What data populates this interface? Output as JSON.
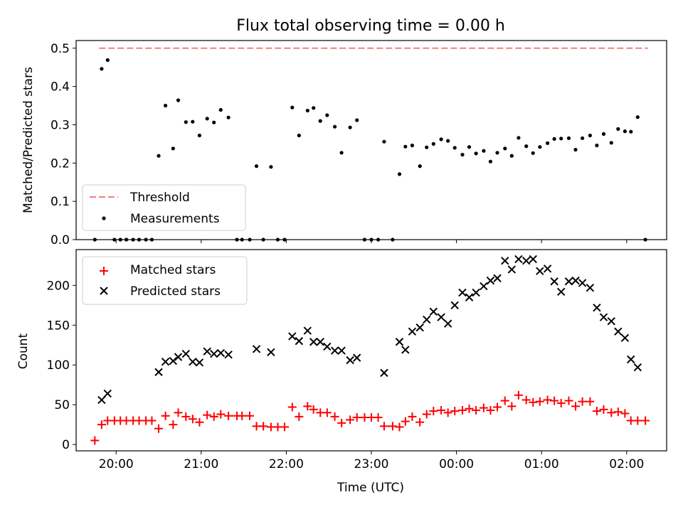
{
  "chart_data": [
    {
      "type": "scatter",
      "title": "Flux total observing time = 0.00 h",
      "xlabel": "",
      "ylabel": "Matched/Predicted stars",
      "x_axis": "time of day (hours, UTC)",
      "xlim": [
        19.53,
        26.47
      ],
      "ylim": [
        0,
        0.52
      ],
      "y_ticks": [
        "0.0",
        "0.1",
        "0.2",
        "0.3",
        "0.4",
        "0.5"
      ],
      "legend_position": "lower-left",
      "series": [
        {
          "name": "Threshold",
          "kind": "dashed-line",
          "color": "#f08080",
          "x": [
            19.8,
            26.25
          ],
          "y": [
            0.5,
            0.5
          ]
        },
        {
          "name": "Measurements",
          "kind": "dot",
          "color": "#000000",
          "points": [
            [
              19.75,
              0.0
            ],
            [
              19.83,
              0.446
            ],
            [
              19.9,
              0.469
            ],
            [
              19.98,
              0.0
            ],
            [
              20.05,
              0.0
            ],
            [
              20.12,
              0.0
            ],
            [
              20.2,
              0.0
            ],
            [
              20.27,
              0.0
            ],
            [
              20.35,
              0.0
            ],
            [
              20.42,
              0.0
            ],
            [
              20.5,
              0.219
            ],
            [
              20.58,
              0.35
            ],
            [
              20.67,
              0.238
            ],
            [
              20.73,
              0.364
            ],
            [
              20.82,
              0.307
            ],
            [
              20.9,
              0.308
            ],
            [
              20.98,
              0.272
            ],
            [
              21.07,
              0.316
            ],
            [
              21.15,
              0.306
            ],
            [
              21.23,
              0.339
            ],
            [
              21.32,
              0.319
            ],
            [
              21.42,
              0.0
            ],
            [
              21.48,
              0.0
            ],
            [
              21.57,
              0.0
            ],
            [
              21.65,
              0.192
            ],
            [
              21.73,
              0.0
            ],
            [
              21.82,
              0.19
            ],
            [
              21.9,
              0.0
            ],
            [
              21.98,
              0.0
            ],
            [
              22.07,
              0.345
            ],
            [
              22.15,
              0.272
            ],
            [
              22.25,
              0.337
            ],
            [
              22.32,
              0.344
            ],
            [
              22.4,
              0.31
            ],
            [
              22.48,
              0.325
            ],
            [
              22.57,
              0.295
            ],
            [
              22.65,
              0.227
            ],
            [
              22.75,
              0.293
            ],
            [
              22.83,
              0.312
            ],
            [
              22.92,
              0.0
            ],
            [
              23.0,
              0.0
            ],
            [
              23.08,
              0.0
            ],
            [
              23.15,
              0.256
            ],
            [
              23.25,
              0.0
            ],
            [
              23.33,
              0.171
            ],
            [
              23.4,
              0.243
            ],
            [
              23.48,
              0.246
            ],
            [
              23.57,
              0.192
            ],
            [
              23.65,
              0.241
            ],
            [
              23.73,
              0.25
            ],
            [
              23.82,
              0.262
            ],
            [
              23.9,
              0.258
            ],
            [
              23.98,
              0.24
            ],
            [
              24.07,
              0.222
            ],
            [
              24.15,
              0.242
            ],
            [
              24.23,
              0.225
            ],
            [
              24.32,
              0.232
            ],
            [
              24.4,
              0.204
            ],
            [
              24.48,
              0.227
            ],
            [
              24.57,
              0.238
            ],
            [
              24.65,
              0.219
            ],
            [
              24.73,
              0.266
            ],
            [
              24.82,
              0.244
            ],
            [
              24.9,
              0.226
            ],
            [
              24.98,
              0.242
            ],
            [
              25.07,
              0.252
            ],
            [
              25.15,
              0.263
            ],
            [
              25.23,
              0.264
            ],
            [
              25.32,
              0.265
            ],
            [
              25.4,
              0.235
            ],
            [
              25.48,
              0.265
            ],
            [
              25.57,
              0.272
            ],
            [
              25.65,
              0.246
            ],
            [
              25.73,
              0.276
            ],
            [
              25.82,
              0.253
            ],
            [
              25.9,
              0.289
            ],
            [
              25.98,
              0.283
            ],
            [
              26.05,
              0.282
            ],
            [
              26.13,
              0.32
            ],
            [
              26.22,
              0.0
            ]
          ]
        }
      ]
    },
    {
      "type": "scatter",
      "title": "",
      "xlabel": "Time (UTC)",
      "ylabel": "Count",
      "x_axis": "time of day (hours, UTC)",
      "xlim": [
        19.53,
        26.47
      ],
      "ylim": [
        -8,
        245
      ],
      "x_ticks": [
        {
          "label": "20:00",
          "hour": 20
        },
        {
          "label": "21:00",
          "hour": 21
        },
        {
          "label": "22:00",
          "hour": 22
        },
        {
          "label": "23:00",
          "hour": 23
        },
        {
          "label": "00:00",
          "hour": 24
        },
        {
          "label": "01:00",
          "hour": 25
        },
        {
          "label": "02:00",
          "hour": 26
        }
      ],
      "y_ticks": [
        "0",
        "50",
        "100",
        "150",
        "200"
      ],
      "legend_position": "upper-left",
      "series": [
        {
          "name": "Matched stars",
          "marker": "+",
          "color": "#ff0000",
          "points": [
            [
              19.75,
              5
            ],
            [
              19.83,
              25
            ],
            [
              19.9,
              30
            ],
            [
              19.98,
              30
            ],
            [
              20.05,
              30
            ],
            [
              20.12,
              30
            ],
            [
              20.2,
              30
            ],
            [
              20.27,
              30
            ],
            [
              20.35,
              30
            ],
            [
              20.42,
              30
            ],
            [
              20.5,
              20
            ],
            [
              20.58,
              36
            ],
            [
              20.67,
              25
            ],
            [
              20.73,
              40
            ],
            [
              20.82,
              35
            ],
            [
              20.9,
              32
            ],
            [
              20.98,
              28
            ],
            [
              21.07,
              37
            ],
            [
              21.15,
              35
            ],
            [
              21.23,
              38
            ],
            [
              21.32,
              36
            ],
            [
              21.42,
              36
            ],
            [
              21.48,
              36
            ],
            [
              21.57,
              36
            ],
            [
              21.65,
              23
            ],
            [
              21.73,
              23
            ],
            [
              21.82,
              22
            ],
            [
              21.9,
              22
            ],
            [
              21.98,
              22
            ],
            [
              22.07,
              47
            ],
            [
              22.15,
              35
            ],
            [
              22.25,
              48
            ],
            [
              22.32,
              44
            ],
            [
              22.4,
              40
            ],
            [
              22.48,
              40
            ],
            [
              22.57,
              35
            ],
            [
              22.65,
              27
            ],
            [
              22.75,
              31
            ],
            [
              22.83,
              34
            ],
            [
              22.92,
              34
            ],
            [
              23.0,
              34
            ],
            [
              23.08,
              34
            ],
            [
              23.15,
              23
            ],
            [
              23.25,
              23
            ],
            [
              23.33,
              22
            ],
            [
              23.4,
              29
            ],
            [
              23.48,
              35
            ],
            [
              23.57,
              28
            ],
            [
              23.65,
              38
            ],
            [
              23.73,
              42
            ],
            [
              23.82,
              43
            ],
            [
              23.9,
              40
            ],
            [
              23.98,
              42
            ],
            [
              24.07,
              43
            ],
            [
              24.15,
              45
            ],
            [
              24.23,
              43
            ],
            [
              24.32,
              46
            ],
            [
              24.4,
              43
            ],
            [
              24.48,
              47
            ],
            [
              24.57,
              55
            ],
            [
              24.65,
              48
            ],
            [
              24.73,
              62
            ],
            [
              24.82,
              56
            ],
            [
              24.9,
              53
            ],
            [
              24.98,
              54
            ],
            [
              25.07,
              56
            ],
            [
              25.15,
              55
            ],
            [
              25.23,
              52
            ],
            [
              25.32,
              55
            ],
            [
              25.4,
              48
            ],
            [
              25.48,
              54
            ],
            [
              25.57,
              54
            ],
            [
              25.65,
              42
            ],
            [
              25.73,
              44
            ],
            [
              25.82,
              40
            ],
            [
              25.9,
              41
            ],
            [
              25.98,
              39
            ],
            [
              26.05,
              30
            ],
            [
              26.13,
              30
            ],
            [
              26.22,
              30
            ]
          ]
        },
        {
          "name": "Predicted stars",
          "marker": "x",
          "color": "#000000",
          "points": [
            [
              19.83,
              56
            ],
            [
              19.9,
              64
            ],
            [
              20.5,
              91
            ],
            [
              20.58,
              104
            ],
            [
              20.67,
              105
            ],
            [
              20.73,
              110
            ],
            [
              20.82,
              114
            ],
            [
              20.9,
              104
            ],
            [
              20.98,
              103
            ],
            [
              21.07,
              117
            ],
            [
              21.15,
              114
            ],
            [
              21.23,
              115
            ],
            [
              21.32,
              113
            ],
            [
              21.65,
              120
            ],
            [
              21.82,
              116
            ],
            [
              22.07,
              136
            ],
            [
              22.15,
              130
            ],
            [
              22.25,
              143
            ],
            [
              22.32,
              129
            ],
            [
              22.4,
              129
            ],
            [
              22.48,
              123
            ],
            [
              22.57,
              118
            ],
            [
              22.65,
              118
            ],
            [
              22.75,
              106
            ],
            [
              22.83,
              109
            ],
            [
              23.15,
              90
            ],
            [
              23.33,
              129
            ],
            [
              23.4,
              119
            ],
            [
              23.48,
              142
            ],
            [
              23.57,
              147
            ],
            [
              23.65,
              157
            ],
            [
              23.73,
              167
            ],
            [
              23.82,
              160
            ],
            [
              23.9,
              152
            ],
            [
              23.98,
              175
            ],
            [
              24.07,
              191
            ],
            [
              24.15,
              185
            ],
            [
              24.23,
              191
            ],
            [
              24.32,
              199
            ],
            [
              24.4,
              206
            ],
            [
              24.48,
              209
            ],
            [
              24.57,
              231
            ],
            [
              24.65,
              220
            ],
            [
              24.73,
              233
            ],
            [
              24.82,
              231
            ],
            [
              24.9,
              233
            ],
            [
              24.98,
              218
            ],
            [
              25.07,
              221
            ],
            [
              25.15,
              205
            ],
            [
              25.23,
              192
            ],
            [
              25.32,
              205
            ],
            [
              25.4,
              206
            ],
            [
              25.48,
              203
            ],
            [
              25.57,
              197
            ],
            [
              25.65,
              172
            ],
            [
              25.73,
              160
            ],
            [
              25.82,
              155
            ],
            [
              25.9,
              142
            ],
            [
              25.98,
              134
            ],
            [
              26.05,
              107
            ],
            [
              26.13,
              97
            ]
          ]
        }
      ]
    }
  ]
}
